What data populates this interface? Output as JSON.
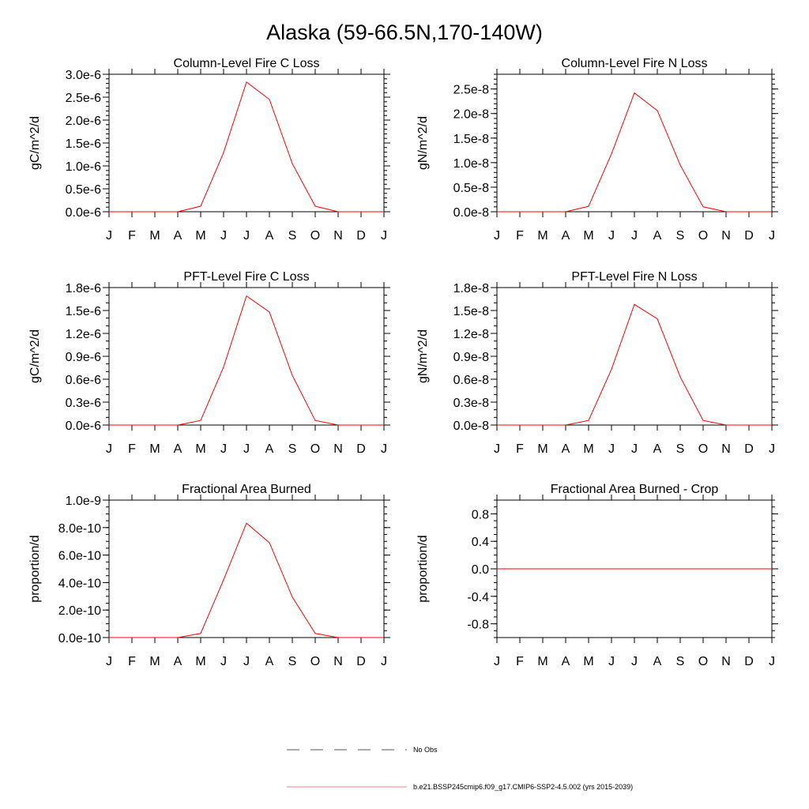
{
  "title": "Alaska (59-66.5N,170-140W)",
  "months": [
    "J",
    "F",
    "M",
    "A",
    "M",
    "J",
    "J",
    "A",
    "S",
    "O",
    "N",
    "D",
    "J"
  ],
  "legend": {
    "items": [
      {
        "label": "No Obs",
        "color": "#000000",
        "style": "dashed"
      },
      {
        "label": "b.e21.BSSP245cmip6.f09_g17.CMIP6-SSP2-4.5.002 (yrs 2015-2039)",
        "color": "#ff0000",
        "style": "solid"
      }
    ]
  },
  "chart_data": [
    {
      "type": "line",
      "title": "Column-Level Fire C Loss",
      "ylabel": "gC/m^2/d",
      "ylim": [
        0,
        3e-06
      ],
      "yticks": [
        0,
        5e-07,
        1e-06,
        1.5e-06,
        2e-06,
        2.5e-06,
        3e-06
      ],
      "yticklabels": [
        "0.0e-6",
        "0.5e-6",
        "1.0e-6",
        "1.5e-6",
        "2.0e-6",
        "2.5e-6",
        "3.0e-6"
      ],
      "values": [
        0,
        0,
        0,
        0,
        1.2e-07,
        1.29e-06,
        2.83e-06,
        2.45e-06,
        1.05e-06,
        1.2e-07,
        0,
        0,
        0
      ],
      "color": "#ff0000"
    },
    {
      "type": "line",
      "title": "Column-Level Fire N Loss",
      "ylabel": "gN/m^2/d",
      "ylim": [
        0,
        2.8e-08
      ],
      "yticks": [
        0,
        5e-09,
        1e-08,
        1.5e-08,
        2e-08,
        2.5e-08
      ],
      "yticklabels": [
        "0.0e-8",
        "0.5e-8",
        "1.0e-8",
        "1.5e-8",
        "2.0e-8",
        "2.5e-8"
      ],
      "values": [
        0,
        0,
        0,
        0,
        1.1e-09,
        1.18e-08,
        2.42e-08,
        2.06e-08,
        9.5e-09,
        1e-09,
        0,
        0,
        0
      ],
      "color": "#ff0000"
    },
    {
      "type": "line",
      "title": "PFT-Level Fire C Loss",
      "ylabel": "gC/m^2/d",
      "ylim": [
        0,
        1.8e-06
      ],
      "yticks": [
        0,
        3e-07,
        6e-07,
        9e-07,
        1.2e-06,
        1.5e-06,
        1.8e-06
      ],
      "yticklabels": [
        "0.0e-6",
        "0.3e-6",
        "0.6e-6",
        "0.9e-6",
        "1.2e-6",
        "1.5e-6",
        "1.8e-6"
      ],
      "values": [
        0,
        0,
        0,
        0,
        6e-08,
        7.6e-07,
        1.69e-06,
        1.48e-06,
        6.5e-07,
        6e-08,
        0,
        0,
        0
      ],
      "color": "#ff0000"
    },
    {
      "type": "line",
      "title": "PFT-Level Fire N Loss",
      "ylabel": "gN/m^2/d",
      "ylim": [
        0,
        1.8e-08
      ],
      "yticks": [
        0,
        3e-09,
        6e-09,
        9e-09,
        1.2e-08,
        1.5e-08,
        1.8e-08
      ],
      "yticklabels": [
        "0.0e-8",
        "0.3e-8",
        "0.6e-8",
        "0.9e-8",
        "1.2e-8",
        "1.5e-8",
        "1.8e-8"
      ],
      "values": [
        0,
        0,
        0,
        0,
        6e-10,
        7.3e-09,
        1.58e-08,
        1.39e-08,
        6.3e-09,
        6e-10,
        0,
        0,
        0
      ],
      "color": "#ff0000"
    },
    {
      "type": "line",
      "title": "Fractional Area Burned",
      "ylabel": "proportion/d",
      "ylim": [
        0,
        1e-09
      ],
      "yticks": [
        0,
        2e-10,
        4e-10,
        6e-10,
        8e-10,
        1e-09
      ],
      "yticklabels": [
        "0.0e-10",
        "2.0e-10",
        "4.0e-10",
        "6.0e-10",
        "8.0e-10",
        "1.0e-9"
      ],
      "values": [
        0,
        0,
        0,
        0,
        3e-11,
        4.2e-10,
        8.32e-10,
        6.9e-10,
        2.95e-10,
        3e-11,
        0,
        0,
        0
      ],
      "color": "#ff0000"
    },
    {
      "type": "line",
      "title": "Fractional Area Burned - Crop",
      "ylabel": "proportion/d",
      "ylim": [
        -1,
        1
      ],
      "yticks": [
        -0.8,
        -0.4,
        0,
        0.4,
        0.8
      ],
      "yticklabels": [
        "-0.8",
        "-0.4",
        "0.0",
        "0.4",
        "0.8"
      ],
      "values": [
        0,
        0,
        0,
        0,
        0,
        0,
        0,
        0,
        0,
        0,
        0,
        0,
        0
      ],
      "color": "#ff0000"
    }
  ]
}
